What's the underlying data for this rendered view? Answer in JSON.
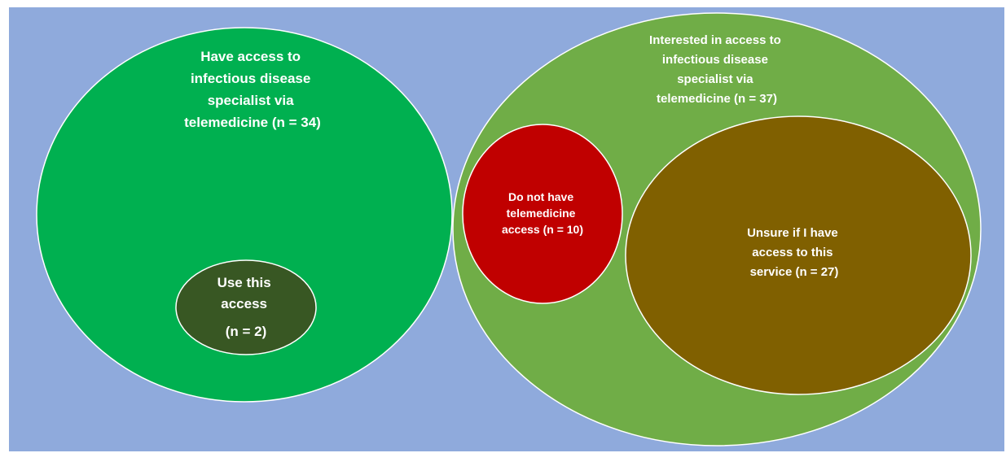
{
  "colors": {
    "background": "#8FAADC",
    "have_access": "#00B050",
    "use_access": "#385723",
    "interested": "#70AD47",
    "no_access": "#C00000",
    "unsure": "#806000",
    "outline": "#FFFFFF",
    "text": "#FFFFFF"
  },
  "groups": {
    "have_access": {
      "lines": [
        "Have access to",
        "infectious disease",
        "specialist via",
        "telemedicine (n = 34)"
      ],
      "n": 34
    },
    "use_access": {
      "lines": [
        "Use this",
        "access",
        "(n = 2)"
      ],
      "n": 2
    },
    "interested": {
      "lines": [
        "Interested in access to",
        "infectious disease",
        "specialist via",
        "telemedicine (n = 37)"
      ],
      "n": 37
    },
    "no_access": {
      "lines": [
        "Do not have",
        "telemedicine",
        "access (n = 10)"
      ],
      "n": 10
    },
    "unsure": {
      "lines": [
        "Unsure if I have",
        "access to this",
        "service (n = 27)"
      ],
      "n": 27
    }
  }
}
